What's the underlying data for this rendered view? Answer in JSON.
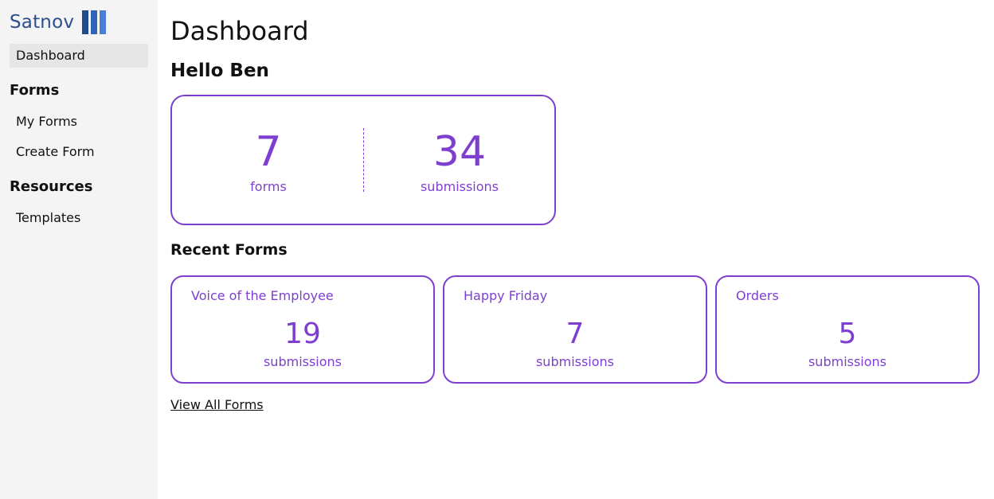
{
  "brand": {
    "name": "Satnov",
    "colors": {
      "dark": "#1f4a8c",
      "mid": "#2f63b8",
      "light": "#4a7ed8",
      "text": "#2d4f8f"
    }
  },
  "sidebar": {
    "dashboard": "Dashboard",
    "forms_heading": "Forms",
    "my_forms": "My Forms",
    "create_form": "Create Form",
    "resources_heading": "Resources",
    "templates": "Templates"
  },
  "main": {
    "title": "Dashboard",
    "greeting": "Hello Ben",
    "summary": {
      "forms_count": "7",
      "forms_label": "forms",
      "submissions_count": "34",
      "submissions_label": "submissions"
    },
    "recent_title": "Recent Forms",
    "recent_forms": [
      {
        "name": "Voice of the Employee",
        "count": "19",
        "label": "submissions"
      },
      {
        "name": "Happy Friday",
        "count": "7",
        "label": "submissions"
      },
      {
        "name": "Orders",
        "count": "5",
        "label": "submissions"
      }
    ],
    "view_all": "View All Forms"
  },
  "colors": {
    "accent": "#7e3fd1",
    "sidebar_bg": "#f4f4f4",
    "active_bg": "#e6e6e6"
  }
}
